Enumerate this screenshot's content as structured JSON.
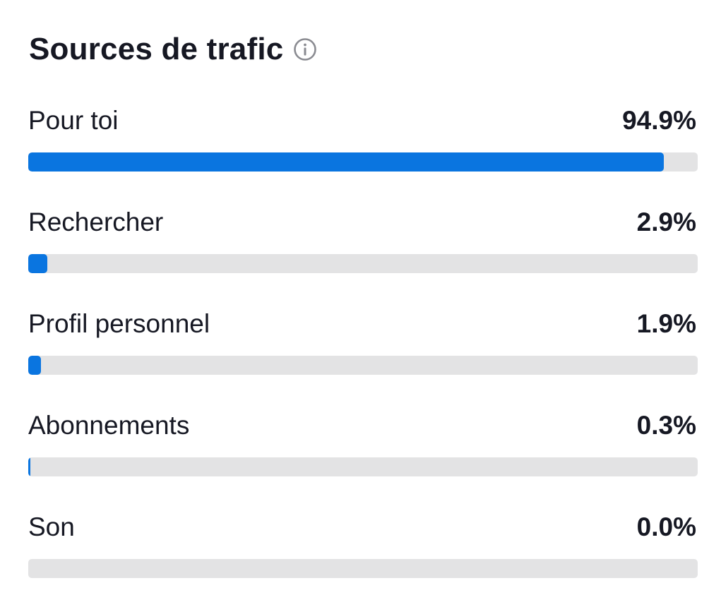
{
  "header": {
    "title": "Sources de trafic",
    "info_icon": "info-icon"
  },
  "colors": {
    "bar_fill": "#0a75e0",
    "bar_track": "#e3e3e4",
    "text": "#161823"
  },
  "sources": [
    {
      "label": "Pour toi",
      "value_text": "94.9%",
      "percent": 94.9
    },
    {
      "label": "Rechercher",
      "value_text": "2.9%",
      "percent": 2.9
    },
    {
      "label": "Profil personnel",
      "value_text": "1.9%",
      "percent": 1.9
    },
    {
      "label": "Abonnements",
      "value_text": "0.3%",
      "percent": 0.3
    },
    {
      "label": "Son",
      "value_text": "0.0%",
      "percent": 0.0
    }
  ]
}
